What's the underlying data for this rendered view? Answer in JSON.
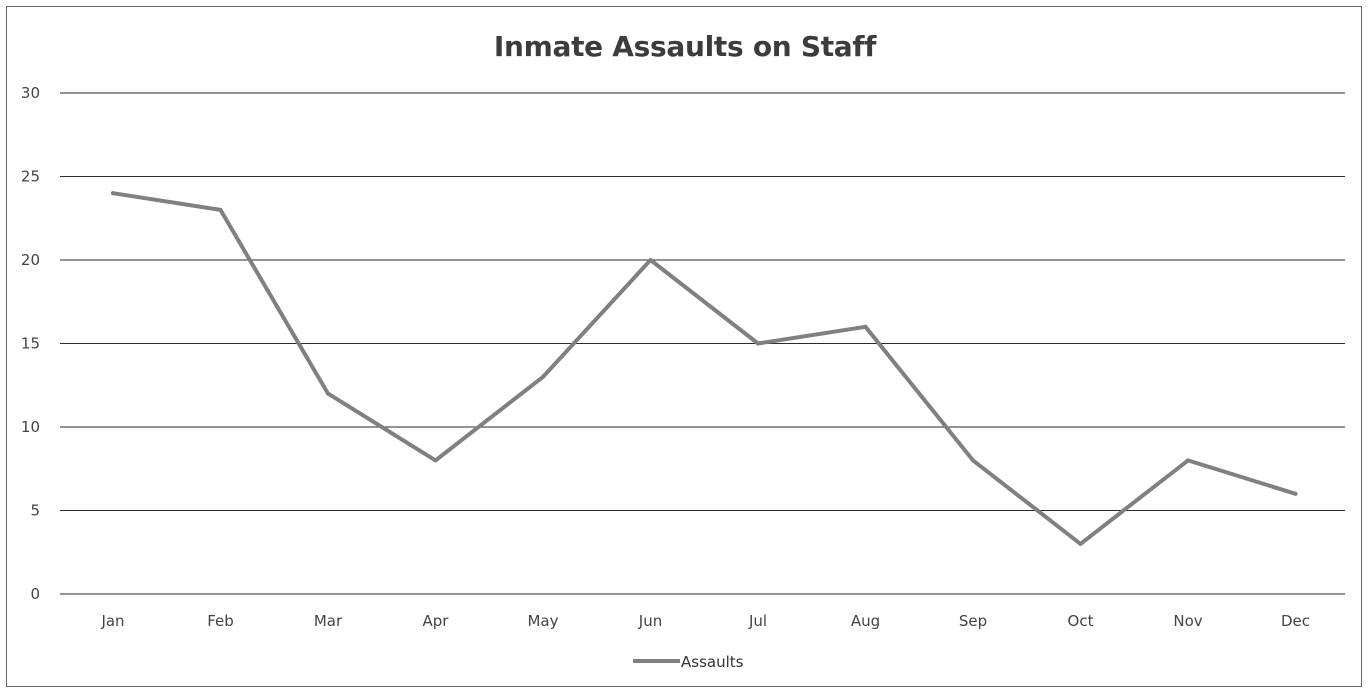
{
  "chart_data": {
    "type": "line",
    "title": "Inmate Assaults on Staff",
    "xlabel": "",
    "ylabel": "",
    "categories": [
      "Jan",
      "Feb",
      "Mar",
      "Apr",
      "May",
      "Jun",
      "Jul",
      "Aug",
      "Sep",
      "Oct",
      "Nov",
      "Dec"
    ],
    "series": [
      {
        "name": "Assaults",
        "values": [
          24,
          23,
          12,
          8,
          13,
          20,
          15,
          16,
          8,
          3,
          8,
          6
        ]
      }
    ],
    "ylim": [
      0,
      30
    ],
    "yticks": [
      "0",
      "5",
      "10",
      "15",
      "20",
      "25",
      "30"
    ],
    "grid": true,
    "legend": "bottom",
    "colors": {
      "line": "#808080",
      "grid": "#2a2a2a",
      "text": "#444444"
    }
  }
}
